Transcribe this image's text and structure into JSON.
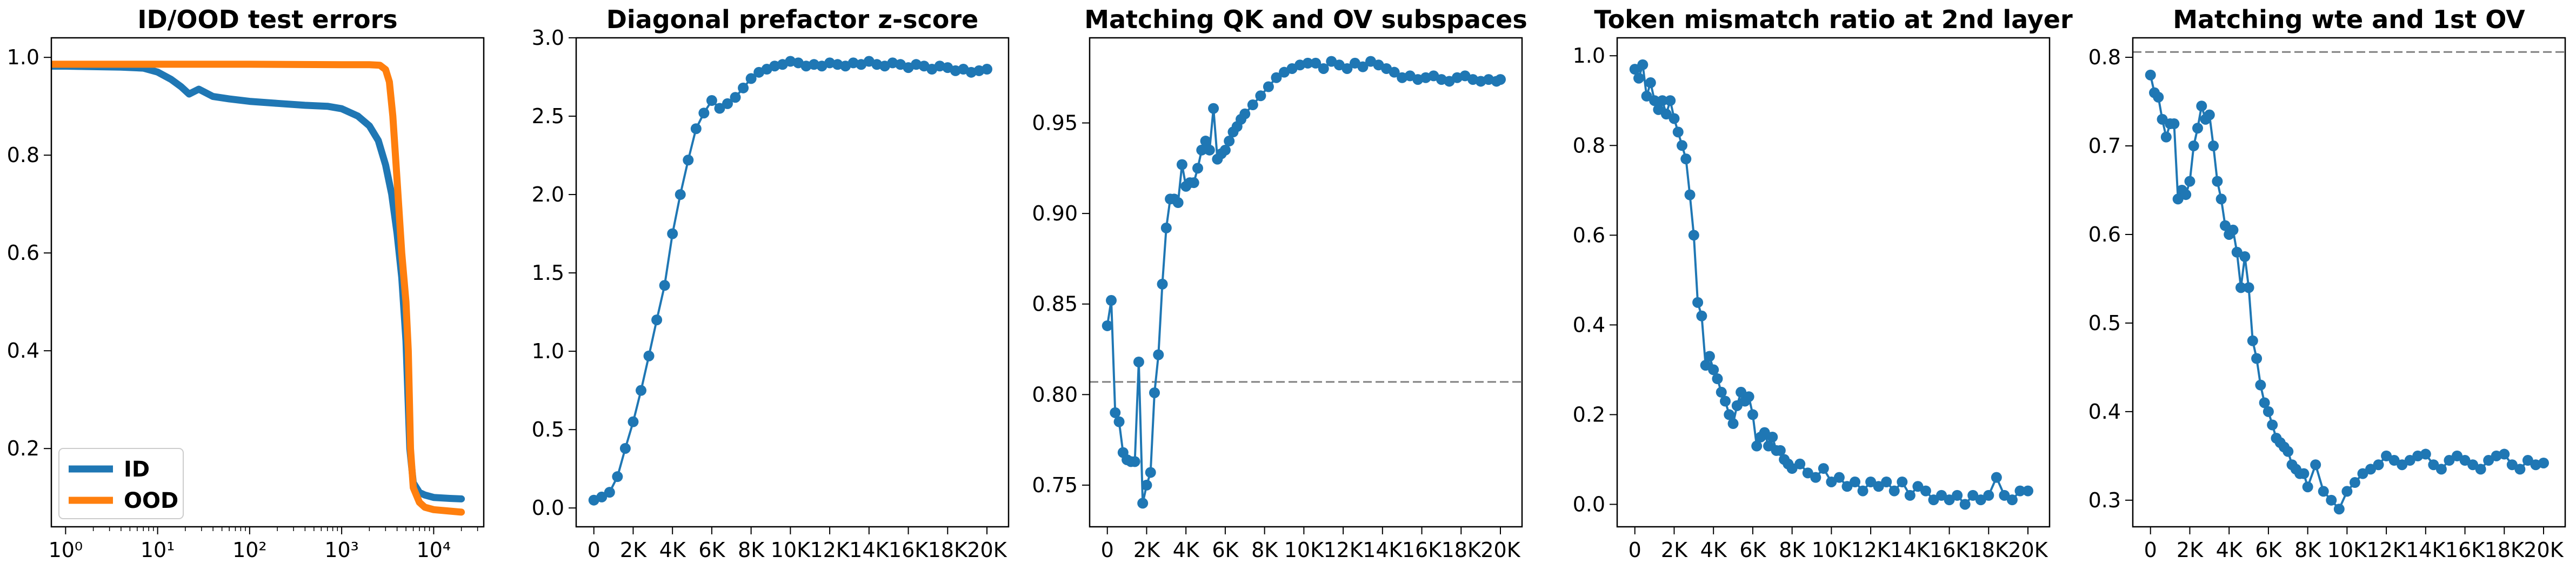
{
  "colors": {
    "blue": "#1f77b4",
    "orange": "#ff7f0e",
    "ref_line": "#808080"
  },
  "chart_data": [
    {
      "type": "line",
      "title": "ID/OOD test errors",
      "xscale": "log",
      "xlim": [
        0.7,
        35000
      ],
      "ylim": [
        0.04,
        1.04
      ],
      "x_ticks": [
        1,
        10,
        100,
        1000,
        10000
      ],
      "x_ticklabels": [
        "10⁰",
        "10¹",
        "10²",
        "10³",
        "10⁴"
      ],
      "y_ticks": [
        0.2,
        0.4,
        0.6,
        0.8,
        1.0
      ],
      "y_ticklabels": [
        "0.2",
        "0.4",
        "0.6",
        "0.8",
        "1.0"
      ],
      "legend": {
        "position": "lower-left",
        "entries": [
          "ID",
          "OOD"
        ]
      },
      "series": [
        {
          "name": "ID",
          "color": "#1f77b4",
          "x": [
            0.7,
            1,
            2,
            4,
            7,
            10,
            14,
            18,
            22,
            28,
            40,
            60,
            100,
            200,
            400,
            700,
            1000,
            1500,
            2000,
            2500,
            3000,
            3500,
            4000,
            4500,
            5000,
            5500,
            6000,
            7000,
            8000,
            10000,
            15000,
            20000
          ],
          "y": [
            0.982,
            0.982,
            0.981,
            0.98,
            0.978,
            0.97,
            0.955,
            0.94,
            0.925,
            0.935,
            0.92,
            0.915,
            0.91,
            0.906,
            0.902,
            0.9,
            0.895,
            0.88,
            0.86,
            0.83,
            0.78,
            0.72,
            0.64,
            0.55,
            0.42,
            0.2,
            0.13,
            0.11,
            0.105,
            0.1,
            0.098,
            0.097
          ]
        },
        {
          "name": "OOD",
          "color": "#ff7f0e",
          "x": [
            0.7,
            1,
            10,
            100,
            1000,
            2000,
            2600,
            3000,
            3300,
            3600,
            4000,
            4500,
            5000,
            5300,
            5600,
            6000,
            7000,
            8000,
            10000,
            15000,
            20000
          ],
          "y": [
            0.986,
            0.986,
            0.986,
            0.986,
            0.985,
            0.985,
            0.984,
            0.975,
            0.95,
            0.88,
            0.75,
            0.6,
            0.5,
            0.4,
            0.2,
            0.12,
            0.09,
            0.08,
            0.075,
            0.072,
            0.07
          ]
        }
      ]
    },
    {
      "type": "line",
      "title": "Diagonal prefactor z-score",
      "markers": true,
      "xlim": [
        -900,
        21100
      ],
      "ylim": [
        -0.12,
        3.0
      ],
      "x_ticks": [
        0,
        2000,
        4000,
        6000,
        8000,
        10000,
        12000,
        14000,
        16000,
        18000,
        20000
      ],
      "x_ticklabels": [
        "0",
        "2K",
        "4K",
        "6K",
        "8K",
        "10K",
        "12K",
        "14K",
        "16K",
        "18K",
        "20K"
      ],
      "y_ticks": [
        0,
        0.5,
        1.0,
        1.5,
        2.0,
        2.5,
        3.0
      ],
      "y_ticklabels": [
        "0.0",
        "0.5",
        "1.0",
        "1.5",
        "2.0",
        "2.5",
        "3.0"
      ],
      "series": [
        {
          "name": "",
          "color": "#1f77b4",
          "x": [
            0,
            400,
            800,
            1200,
            1600,
            2000,
            2400,
            2800,
            3200,
            3600,
            4000,
            4400,
            4800,
            5200,
            5600,
            6000,
            6400,
            6800,
            7200,
            7600,
            8000,
            8400,
            8800,
            9200,
            9600,
            10000,
            10400,
            10800,
            11200,
            11600,
            12000,
            12400,
            12800,
            13200,
            13600,
            14000,
            14400,
            14800,
            15200,
            15600,
            16000,
            16400,
            16800,
            17200,
            17600,
            18000,
            18400,
            18800,
            19200,
            19600,
            20000
          ],
          "y": [
            0.05,
            0.07,
            0.1,
            0.2,
            0.38,
            0.55,
            0.75,
            0.97,
            1.2,
            1.42,
            1.75,
            2.0,
            2.22,
            2.42,
            2.52,
            2.6,
            2.55,
            2.58,
            2.62,
            2.68,
            2.74,
            2.78,
            2.8,
            2.82,
            2.83,
            2.85,
            2.84,
            2.82,
            2.83,
            2.82,
            2.84,
            2.83,
            2.82,
            2.84,
            2.83,
            2.85,
            2.83,
            2.82,
            2.84,
            2.83,
            2.81,
            2.83,
            2.82,
            2.8,
            2.82,
            2.81,
            2.79,
            2.8,
            2.78,
            2.79,
            2.8
          ]
        }
      ]
    },
    {
      "type": "line",
      "title": "Matching QK and OV subspaces",
      "markers": true,
      "xlim": [
        -900,
        21100
      ],
      "ylim": [
        0.727,
        0.997
      ],
      "x_ticks": [
        0,
        2000,
        4000,
        6000,
        8000,
        10000,
        12000,
        14000,
        16000,
        18000,
        20000
      ],
      "x_ticklabels": [
        "0",
        "2K",
        "4K",
        "6K",
        "8K",
        "10K",
        "12K",
        "14K",
        "16K",
        "18K",
        "20K"
      ],
      "y_ticks": [
        0.75,
        0.8,
        0.85,
        0.9,
        0.95
      ],
      "y_ticklabels": [
        "0.75",
        "0.80",
        "0.85",
        "0.90",
        "0.95"
      ],
      "reference_line": 0.807,
      "series": [
        {
          "name": "",
          "color": "#1f77b4",
          "x": [
            0,
            200,
            400,
            600,
            800,
            1000,
            1200,
            1400,
            1600,
            1800,
            2000,
            2200,
            2400,
            2600,
            2800,
            3000,
            3200,
            3400,
            3600,
            3800,
            4000,
            4200,
            4400,
            4600,
            4800,
            5000,
            5200,
            5400,
            5600,
            5800,
            6000,
            6200,
            6400,
            6600,
            6800,
            7000,
            7400,
            7800,
            8200,
            8600,
            9000,
            9400,
            9800,
            10200,
            10600,
            11000,
            11400,
            11800,
            12200,
            12600,
            13000,
            13400,
            13800,
            14200,
            14600,
            15000,
            15400,
            15800,
            16200,
            16600,
            17000,
            17400,
            17800,
            18200,
            18600,
            19000,
            19400,
            19800,
            20000
          ],
          "y": [
            0.838,
            0.852,
            0.79,
            0.785,
            0.768,
            0.764,
            0.763,
            0.763,
            0.818,
            0.74,
            0.75,
            0.757,
            0.801,
            0.822,
            0.861,
            0.892,
            0.908,
            0.908,
            0.906,
            0.927,
            0.915,
            0.917,
            0.917,
            0.925,
            0.935,
            0.94,
            0.935,
            0.958,
            0.93,
            0.933,
            0.935,
            0.94,
            0.945,
            0.948,
            0.952,
            0.955,
            0.96,
            0.965,
            0.97,
            0.975,
            0.978,
            0.98,
            0.982,
            0.983,
            0.983,
            0.98,
            0.984,
            0.982,
            0.98,
            0.983,
            0.981,
            0.984,
            0.982,
            0.98,
            0.978,
            0.975,
            0.976,
            0.974,
            0.975,
            0.976,
            0.974,
            0.973,
            0.975,
            0.976,
            0.974,
            0.973,
            0.974,
            0.973,
            0.974
          ]
        }
      ]
    },
    {
      "type": "line",
      "title": "Token mismatch ratio at 2nd layer",
      "markers": true,
      "xlim": [
        -900,
        21100
      ],
      "ylim": [
        -0.05,
        1.04
      ],
      "x_ticks": [
        0,
        2000,
        4000,
        6000,
        8000,
        10000,
        12000,
        14000,
        16000,
        18000,
        20000
      ],
      "x_ticklabels": [
        "0",
        "2K",
        "4K",
        "6K",
        "8K",
        "10K",
        "12K",
        "14K",
        "16K",
        "18K",
        "20K"
      ],
      "y_ticks": [
        0,
        0.2,
        0.4,
        0.6,
        0.8,
        1.0
      ],
      "y_ticklabels": [
        "0.0",
        "0.2",
        "0.4",
        "0.6",
        "0.8",
        "1.0"
      ],
      "series": [
        {
          "name": "",
          "color": "#1f77b4",
          "x": [
            0,
            200,
            400,
            600,
            800,
            1000,
            1200,
            1400,
            1600,
            1800,
            2000,
            2200,
            2400,
            2600,
            2800,
            3000,
            3200,
            3400,
            3600,
            3800,
            4000,
            4200,
            4400,
            4600,
            4800,
            5000,
            5200,
            5400,
            5600,
            5800,
            6000,
            6200,
            6400,
            6600,
            6800,
            7000,
            7200,
            7400,
            7600,
            7800,
            8000,
            8400,
            8800,
            9200,
            9600,
            10000,
            10400,
            10800,
            11200,
            11600,
            12000,
            12400,
            12800,
            13200,
            13600,
            14000,
            14400,
            14800,
            15200,
            15600,
            16000,
            16400,
            16800,
            17200,
            17600,
            18000,
            18400,
            18800,
            19200,
            19600,
            20000
          ],
          "y": [
            0.97,
            0.95,
            0.98,
            0.91,
            0.94,
            0.9,
            0.88,
            0.9,
            0.87,
            0.9,
            0.86,
            0.83,
            0.8,
            0.77,
            0.69,
            0.6,
            0.45,
            0.42,
            0.31,
            0.33,
            0.3,
            0.28,
            0.25,
            0.23,
            0.2,
            0.18,
            0.22,
            0.25,
            0.23,
            0.24,
            0.2,
            0.13,
            0.15,
            0.16,
            0.13,
            0.15,
            0.12,
            0.12,
            0.1,
            0.09,
            0.08,
            0.09,
            0.07,
            0.06,
            0.08,
            0.05,
            0.06,
            0.04,
            0.05,
            0.03,
            0.05,
            0.04,
            0.05,
            0.03,
            0.05,
            0.02,
            0.04,
            0.03,
            0.01,
            0.02,
            0.01,
            0.02,
            0.0,
            0.02,
            0.01,
            0.02,
            0.06,
            0.02,
            0.01,
            0.03,
            0.03
          ]
        }
      ]
    },
    {
      "type": "line",
      "title": "Matching wte and 1st OV",
      "markers": true,
      "xlim": [
        -900,
        21100
      ],
      "ylim": [
        0.27,
        0.822
      ],
      "x_ticks": [
        0,
        2000,
        4000,
        6000,
        8000,
        10000,
        12000,
        14000,
        16000,
        18000,
        20000
      ],
      "x_ticklabels": [
        "0",
        "2K",
        "4K",
        "6K",
        "8K",
        "10K",
        "12K",
        "14K",
        "16K",
        "18K",
        "20K"
      ],
      "y_ticks": [
        0.3,
        0.4,
        0.5,
        0.6,
        0.7,
        0.8
      ],
      "y_ticklabels": [
        "0.3",
        "0.4",
        "0.5",
        "0.6",
        "0.7",
        "0.8"
      ],
      "reference_line": 0.806,
      "series": [
        {
          "name": "",
          "color": "#1f77b4",
          "x": [
            0,
            200,
            400,
            600,
            800,
            1000,
            1200,
            1400,
            1600,
            1800,
            2000,
            2200,
            2400,
            2600,
            2800,
            3000,
            3200,
            3400,
            3600,
            3800,
            4000,
            4200,
            4400,
            4600,
            4800,
            5000,
            5200,
            5400,
            5600,
            5800,
            6000,
            6200,
            6400,
            6600,
            6800,
            7000,
            7200,
            7400,
            7600,
            7800,
            8000,
            8400,
            8800,
            9200,
            9600,
            10000,
            10400,
            10800,
            11200,
            11600,
            12000,
            12400,
            12800,
            13200,
            13600,
            14000,
            14400,
            14800,
            15200,
            15600,
            16000,
            16400,
            16800,
            17200,
            17600,
            18000,
            18400,
            18800,
            19200,
            19600,
            20000
          ],
          "y": [
            0.78,
            0.76,
            0.755,
            0.73,
            0.71,
            0.725,
            0.725,
            0.64,
            0.65,
            0.645,
            0.66,
            0.7,
            0.72,
            0.745,
            0.73,
            0.735,
            0.7,
            0.66,
            0.64,
            0.61,
            0.6,
            0.605,
            0.58,
            0.54,
            0.575,
            0.54,
            0.48,
            0.46,
            0.43,
            0.41,
            0.4,
            0.385,
            0.37,
            0.365,
            0.36,
            0.355,
            0.34,
            0.335,
            0.33,
            0.33,
            0.315,
            0.34,
            0.31,
            0.3,
            0.29,
            0.31,
            0.32,
            0.33,
            0.335,
            0.34,
            0.35,
            0.345,
            0.34,
            0.345,
            0.35,
            0.352,
            0.34,
            0.335,
            0.345,
            0.35,
            0.345,
            0.34,
            0.335,
            0.345,
            0.35,
            0.352,
            0.34,
            0.335,
            0.345,
            0.34,
            0.342
          ]
        }
      ]
    }
  ]
}
